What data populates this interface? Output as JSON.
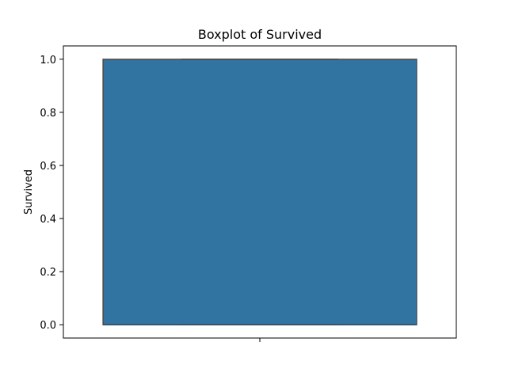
{
  "chart_data": {
    "type": "box",
    "title": "Boxplot of Survived",
    "xlabel": "",
    "ylabel": "Survived",
    "ylim": [
      -0.05,
      1.05
    ],
    "yticks": [
      0.0,
      0.2,
      0.4,
      0.6,
      0.8,
      1.0
    ],
    "ytick_labels": [
      "0.0",
      "0.2",
      "0.4",
      "0.6",
      "0.8",
      "1.0"
    ],
    "grid": false,
    "box": {
      "min": 0.0,
      "q1": 0.0,
      "median": 0.0,
      "q3": 1.0,
      "max": 1.0,
      "fill_color": "#3274a1",
      "edge_color": "#3f3f3f"
    }
  }
}
